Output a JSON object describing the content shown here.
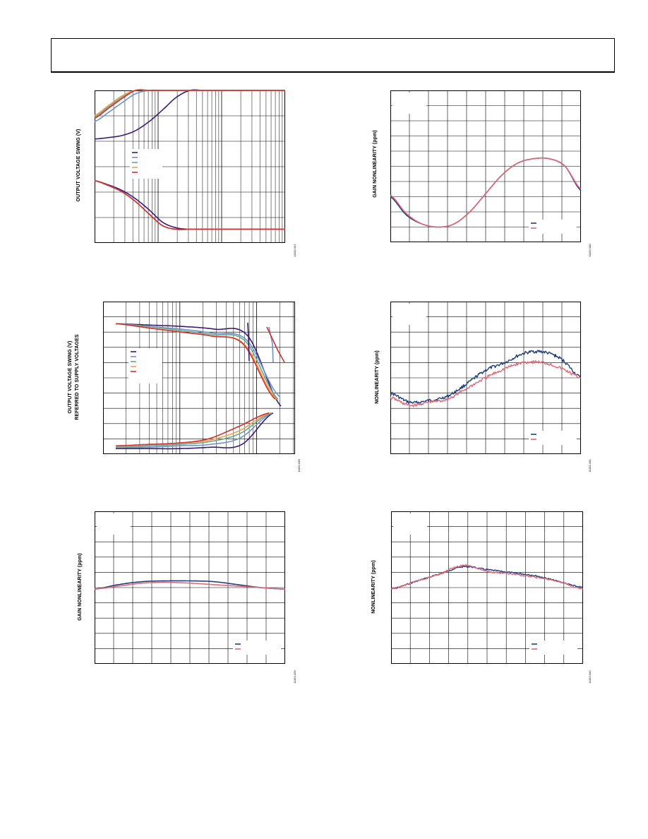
{
  "page": {
    "header_text": ""
  },
  "colors": {
    "navy": "#1f3f7a",
    "pink": "#e06878",
    "purple": "#3a1a7a",
    "steel": "#6f93c6",
    "green": "#6aa58e",
    "orange": "#f0a050",
    "red": "#d03030"
  },
  "figures": [
    {
      "id": "fig-1",
      "ylabel": "OUTPUT VOLTAGE SWING (V)",
      "fig_code": "11192-027",
      "legend_swatches": [
        "#3a1a7a",
        "#6f93c6",
        "#6aa58e",
        "#f0a050",
        "#d03030"
      ]
    },
    {
      "id": "fig-2",
      "ylabel": "GAIN NONLINEARITY (ppm)",
      "fig_code": "11192-040",
      "legend_swatches": [
        "#1f3f7a",
        "#e06878"
      ]
    },
    {
      "id": "fig-3",
      "ylabel_line1": "OUTPUT VOLTAGE SWING (V)",
      "ylabel_line2": "REFERRED TO SUPPLY VOLTAGES",
      "fig_code": "11192-028",
      "legend_swatches": [
        "#3a1a7a",
        "#6f93c6",
        "#6aa58e",
        "#f0a050",
        "#d03030"
      ]
    },
    {
      "id": "fig-4",
      "ylabel": "NONLINEARITY (ppm)",
      "fig_code": "11192-041",
      "legend_swatches": [
        "#1f3f7a",
        "#e06878"
      ]
    },
    {
      "id": "fig-5",
      "ylabel": "GAIN NONLINEARITY (ppm)",
      "fig_code": "11192-029",
      "legend_swatches": [
        "#1f3f7a",
        "#e06878"
      ]
    },
    {
      "id": "fig-6",
      "ylabel": "NONLINEARITY (ppm)",
      "fig_code": "11192-042",
      "legend_swatches": [
        "#1f3f7a",
        "#e06878"
      ]
    }
  ],
  "chart_data": [
    {
      "type": "line",
      "x_scale": "log",
      "grid": true,
      "series": [
        {
          "color": "#3a1a7a",
          "upper": [
            0.3,
            0.32,
            0.35,
            0.42,
            0.55,
            0.72,
            0.9,
            1,
            1,
            1,
            1,
            1,
            1,
            1,
            1
          ],
          "lower": [
            -0.3,
            -0.36,
            -0.44,
            -0.56,
            -0.72,
            -0.9,
            -0.98,
            -1,
            -1,
            -1,
            -1,
            -1,
            -1,
            -1,
            -1
          ]
        },
        {
          "color": "#6f93c6",
          "upper": [
            0.55,
            0.68,
            0.82,
            0.95,
            1,
            1,
            1,
            1,
            1,
            1,
            1,
            1,
            1,
            1,
            1
          ],
          "lower": [
            -0.3,
            -0.37,
            -0.46,
            -0.6,
            -0.78,
            -0.95,
            -1,
            -1,
            -1,
            -1,
            -1,
            -1,
            -1,
            -1,
            -1
          ]
        },
        {
          "color": "#6aa58e",
          "upper": [
            0.62,
            0.76,
            0.9,
            1,
            1,
            1,
            1,
            1,
            1,
            1,
            1,
            1,
            1,
            1,
            1
          ],
          "lower": [
            -0.3,
            -0.37,
            -0.46,
            -0.6,
            -0.78,
            -0.95,
            -1,
            -1,
            -1,
            -1,
            -1,
            -1,
            -1,
            -1,
            -1
          ]
        },
        {
          "color": "#f0a050",
          "upper": [
            0.64,
            0.78,
            0.92,
            1,
            1,
            1,
            1,
            1,
            1,
            1,
            1,
            1,
            1,
            1,
            1
          ],
          "lower": [
            -0.3,
            -0.37,
            -0.46,
            -0.6,
            -0.78,
            -0.95,
            -1,
            -1,
            -1,
            -1,
            -1,
            -1,
            -1,
            -1,
            -1
          ]
        },
        {
          "color": "#d03030",
          "upper": [
            0.6,
            0.74,
            0.88,
            1,
            1,
            1,
            1,
            1,
            1,
            1,
            1,
            1,
            1,
            1,
            1
          ],
          "lower": [
            -0.3,
            -0.37,
            -0.46,
            -0.6,
            -0.78,
            -0.95,
            -1,
            -1,
            -1,
            -1,
            -1,
            -1,
            -1,
            -1,
            -1
          ]
        }
      ]
    },
    {
      "type": "line",
      "grid": true,
      "series": [
        {
          "color": "#1f3f7a",
          "y": [
            0.3,
            0.18,
            0.12,
            0.1,
            0.12,
            0.2,
            0.32,
            0.44,
            0.52,
            0.55,
            0.55,
            0.5,
            0.34
          ]
        },
        {
          "color": "#e06878",
          "y": [
            0.31,
            0.19,
            0.12,
            0.1,
            0.12,
            0.2,
            0.32,
            0.44,
            0.52,
            0.55,
            0.55,
            0.5,
            0.35
          ]
        }
      ]
    },
    {
      "type": "line",
      "x_scale": "log",
      "grid": true,
      "series": [
        {
          "color": "#3a1a7a",
          "upper": [
            0.95,
            0.94,
            0.93,
            0.91,
            0.86,
            0.35
          ],
          "lower": [
            0.04,
            0.04,
            0.04,
            0.05,
            0.07,
            0.3
          ]
        },
        {
          "color": "#6f93c6",
          "upper": [
            0.95,
            0.93,
            0.91,
            0.88,
            0.83,
            0.42
          ],
          "lower": [
            0.05,
            0.05,
            0.06,
            0.07,
            0.12,
            0.3
          ]
        },
        {
          "color": "#6aa58e",
          "upper": [
            0.95,
            0.93,
            0.9,
            0.87,
            0.82,
            0.4
          ],
          "lower": [
            0.05,
            0.06,
            0.07,
            0.09,
            0.15,
            0.3
          ]
        },
        {
          "color": "#f0a050",
          "upper": [
            0.95,
            0.92,
            0.89,
            0.86,
            0.8,
            0.4
          ],
          "lower": [
            0.06,
            0.07,
            0.08,
            0.1,
            0.17,
            0.3
          ]
        },
        {
          "color": "#d03030",
          "upper": [
            0.95,
            0.92,
            0.89,
            0.86,
            0.8,
            0.4
          ],
          "lower": [
            0.06,
            0.07,
            0.08,
            0.11,
            0.2,
            0.3
          ]
        }
      ]
    },
    {
      "type": "line",
      "grid": true,
      "series": [
        {
          "color": "#1f3f7a",
          "y": [
            0.4,
            0.34,
            0.35,
            0.38,
            0.46,
            0.55,
            0.6,
            0.66,
            0.67,
            0.62,
            0.5
          ]
        },
        {
          "color": "#e06878",
          "y": [
            0.37,
            0.32,
            0.34,
            0.36,
            0.43,
            0.5,
            0.56,
            0.6,
            0.6,
            0.56,
            0.5
          ]
        }
      ]
    },
    {
      "type": "line",
      "grid": true,
      "series": [
        {
          "color": "#1f3f7a",
          "y": [
            0.5,
            0.53,
            0.55,
            0.555,
            0.555,
            0.55,
            0.53,
            0.51,
            0.5
          ]
        },
        {
          "color": "#e06878",
          "y": [
            0.5,
            0.52,
            0.54,
            0.545,
            0.54,
            0.53,
            0.52,
            0.51,
            0.5
          ]
        }
      ]
    },
    {
      "type": "line",
      "grid": true,
      "series": [
        {
          "color": "#1f3f7a",
          "y": [
            0.5,
            0.55,
            0.6,
            0.65,
            0.63,
            0.61,
            0.59,
            0.55,
            0.51
          ]
        },
        {
          "color": "#e06878",
          "y": [
            0.5,
            0.55,
            0.6,
            0.66,
            0.62,
            0.6,
            0.58,
            0.55,
            0.5
          ]
        }
      ]
    }
  ]
}
